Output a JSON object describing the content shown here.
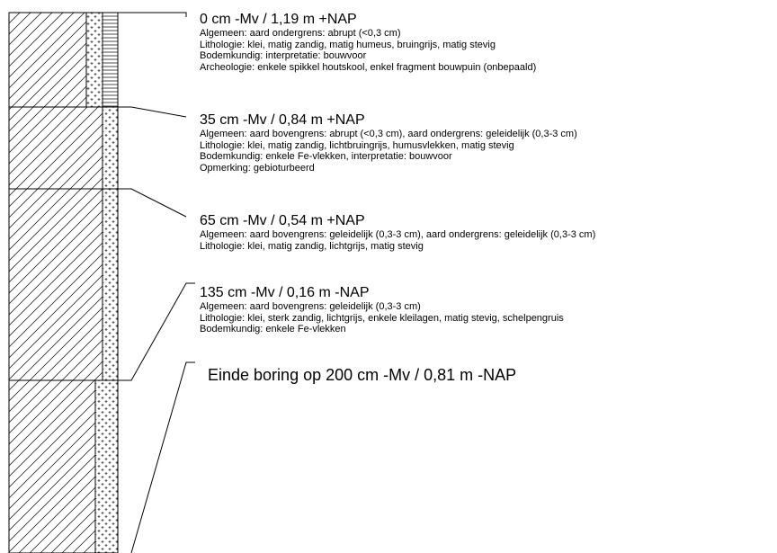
{
  "layers": [
    {
      "title": "0 cm -Mv / 1,19 m +NAP",
      "lines": [
        "Algemeen: aard ondergrens: abrupt (<0,3 cm)",
        "Lithologie: klei, matig zandig, matig humeus, bruingrijs, matig stevig",
        "Bodemkundig: interpretatie: bouwvoor",
        "Archeologie: enkele spikkel houtskool, enkel fragment bouwpuin (onbepaald)"
      ]
    },
    {
      "title": "35 cm -Mv / 0,84 m +NAP",
      "lines": [
        "Algemeen: aard bovengrens: abrupt (<0,3 cm), aard ondergrens: geleidelijk (0,3-3 cm)",
        "Lithologie: klei, matig zandig, lichtbruingrijs, humusvlekken, matig stevig",
        "Bodemkundig: enkele Fe-vlekken, interpretatie: bouwvoor",
        "Opmerking: gebioturbeerd"
      ]
    },
    {
      "title": "65 cm -Mv / 0,54 m +NAP",
      "lines": [
        "Algemeen: aard bovengrens: geleidelijk (0,3-3 cm), aard ondergrens: geleidelijk (0,3-3 cm)",
        "Lithologie: klei, matig zandig, lichtgrijs, matig stevig"
      ]
    },
    {
      "title": "135 cm -Mv / 0,16 m -NAP",
      "lines": [
        "Algemeen: aard bovengrens: geleidelijk (0,3-3 cm)",
        "Lithologie: klei, sterk zandig, lichtgrijs, enkele kleilagen, matig stevig, schelpengruis",
        "Bodemkundig: enkele Fe-vlekken"
      ]
    }
  ],
  "end_label": "Einde boring op 200 cm -Mv / 0,81 m -NAP"
}
